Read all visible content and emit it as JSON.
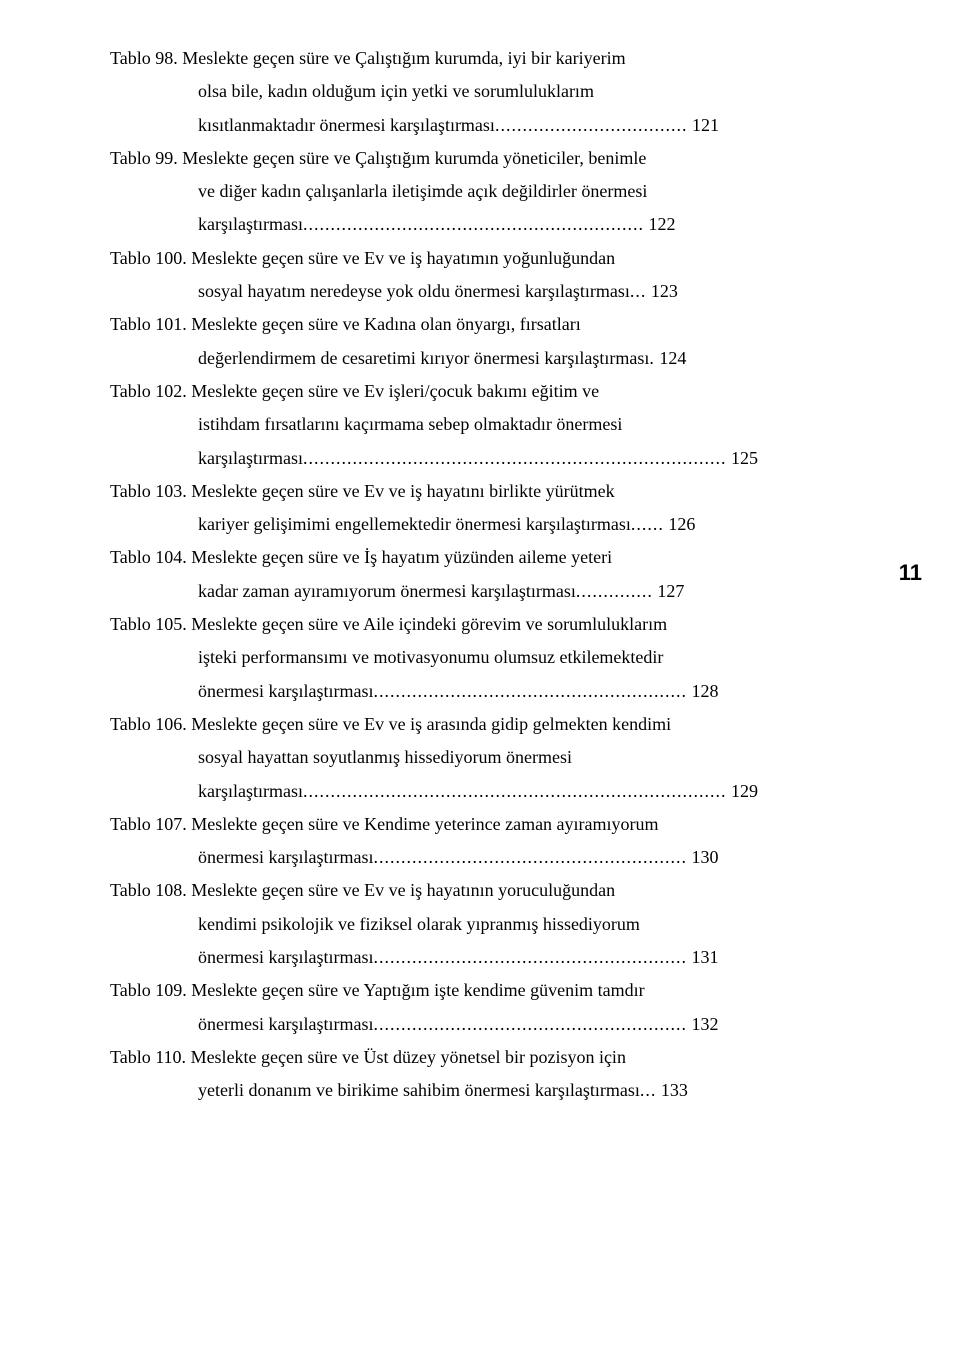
{
  "page_number": "11",
  "entries": [
    {
      "label": "Tablo 98.",
      "text": "Meslekte geçen süre ve Çalıştığım kurumda, iyi bir kariyerim olsa bile, kadın olduğum için yetki ve sorumluluklarım kısıtlanmaktadır önermesi karşılaştırması",
      "page": "121"
    },
    {
      "label": "Tablo 99.",
      "text": "Meslekte geçen süre ve Çalıştığım kurumda yöneticiler, benimle ve diğer kadın çalışanlarla iletişimde açık değildirler önermesi karşılaştırması",
      "page": "122"
    },
    {
      "label": "Tablo 100.",
      "text": "Meslekte geçen süre ve Ev ve iş hayatımın yoğunluğundan sosyal hayatım neredeyse yok oldu önermesi karşılaştırması",
      "page": "123"
    },
    {
      "label": "Tablo 101.",
      "text": "Meslekte geçen süre ve Kadına olan önyargı, fırsatları değerlendirmem de cesaretimi kırıyor önermesi karşılaştırması",
      "page": "124"
    },
    {
      "label": "Tablo 102.",
      "text": "Meslekte geçen süre ve Ev işleri/çocuk bakımı eğitim ve istihdam fırsatlarını kaçırmama sebep olmaktadır önermesi karşılaştırması",
      "page": "125"
    },
    {
      "label": "Tablo 103.",
      "text": "Meslekte geçen süre ve Ev ve iş hayatını birlikte yürütmek kariyer gelişimimi engellemektedir önermesi karşılaştırması",
      "page": "126"
    },
    {
      "label": "Tablo 104.",
      "text": "Meslekte geçen süre ve İş hayatım yüzünden aileme yeteri kadar zaman ayıramıyorum önermesi karşılaştırması",
      "page": "127"
    },
    {
      "label": "Tablo 105.",
      "text": "Meslekte geçen süre ve Aile içindeki görevim ve sorumluluklarım işteki performansımı ve motivasyonumu olumsuz etkilemektedir önermesi karşılaştırması",
      "page": "128"
    },
    {
      "label": "Tablo 106.",
      "text": "Meslekte geçen süre ve Ev ve iş arasında gidip gelmekten kendimi sosyal hayattan soyutlanmış hissediyorum önermesi karşılaştırması",
      "page": "129"
    },
    {
      "label": "Tablo 107.",
      "text": "Meslekte geçen süre ve Kendime yeterince zaman ayıramıyorum önermesi karşılaştırması",
      "page": "130"
    },
    {
      "label": "Tablo 108.",
      "text": "Meslekte geçen süre ve Ev ve iş hayatının yoruculuğundan kendimi psikolojik ve fiziksel olarak yıpranmış hissediyorum önermesi karşılaştırması",
      "page": "131"
    },
    {
      "label": "Tablo 109.",
      "text": "Meslekte geçen süre ve Yaptığım işte kendime güvenim tamdır önermesi karşılaştırması",
      "page": "132"
    },
    {
      "label": "Tablo 110.",
      "text": "Meslekte geçen süre ve Üst düzey yönetsel bir pozisyon için yeterli donanım ve birikime sahibim önermesi karşılaştırması",
      "page": "133"
    }
  ],
  "layout": {
    "dot_patterns": {
      "0": "...................................",
      "1": "..............................................................",
      "2": "...",
      "3": ".",
      "4": ".............................................................................",
      "5": "......",
      "6": "..............",
      "7": ".........................................................",
      "8": ".............................................................................",
      "9": ".........................................................",
      "10": ".........................................................",
      "11": ".........................................................",
      "12": "..."
    }
  }
}
